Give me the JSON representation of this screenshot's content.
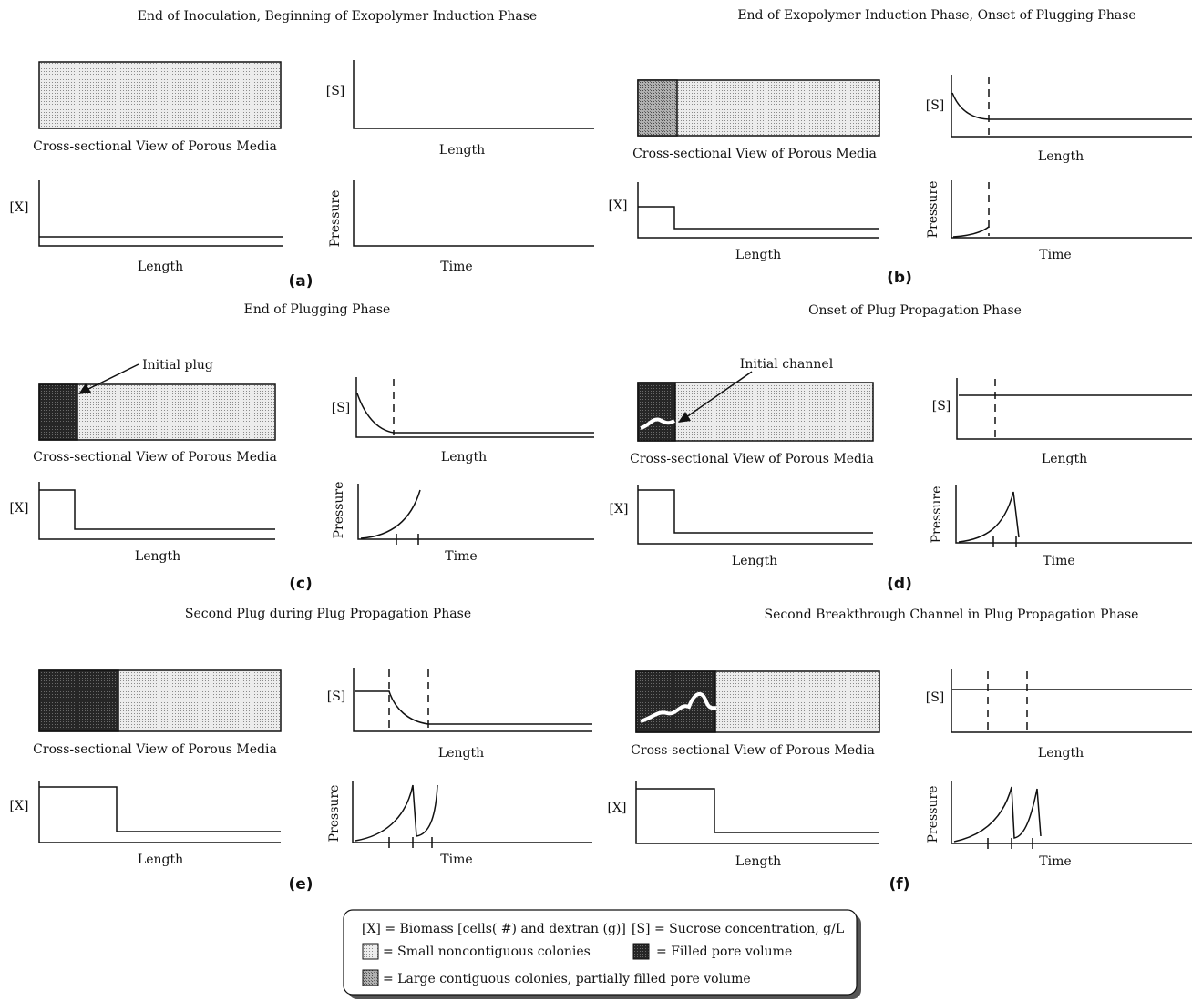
{
  "panels": {
    "a": {
      "title": "End of Inoculation, Beginning of Exopolymer Induction Phase",
      "label": "(a)"
    },
    "b": {
      "title": "End of Exopolymer Induction Phase, Onset of Plugging Phase",
      "label": "(b)"
    },
    "c": {
      "title": "End of Plugging Phase",
      "label": "(c)",
      "annotation": "Initial plug"
    },
    "d": {
      "title": "Onset of Plug Propagation Phase",
      "label": "(d)",
      "annotation": "Initial channel"
    },
    "e": {
      "title": "Second Plug during Plug Propagation Phase",
      "label": "(e)"
    },
    "f": {
      "title": "Second Breakthrough Channel in Plug Propagation Phase",
      "label": "(f)"
    }
  },
  "axes": {
    "substrate": "[S]",
    "biomass": "[X]",
    "pressure": "Pressure",
    "length": "Length",
    "time": "Time",
    "media_caption": "Cross-sectional View of Porous Media"
  },
  "legend": {
    "biomass": "[X] = Biomass  [cells( #) and dextran (g)]",
    "sucrose": "[S] = Sucrose concentration, g/L",
    "small": "= Small noncontiguous colonies",
    "filled": "= Filled pore volume",
    "large": "= Large contiguous colonies, partially filled pore volume"
  },
  "colors": {
    "small_colonies": "#e2e2e2",
    "large_colonies": "#9c9c9c",
    "filled_pore": "#2a2a2a",
    "line": "#111111"
  }
}
